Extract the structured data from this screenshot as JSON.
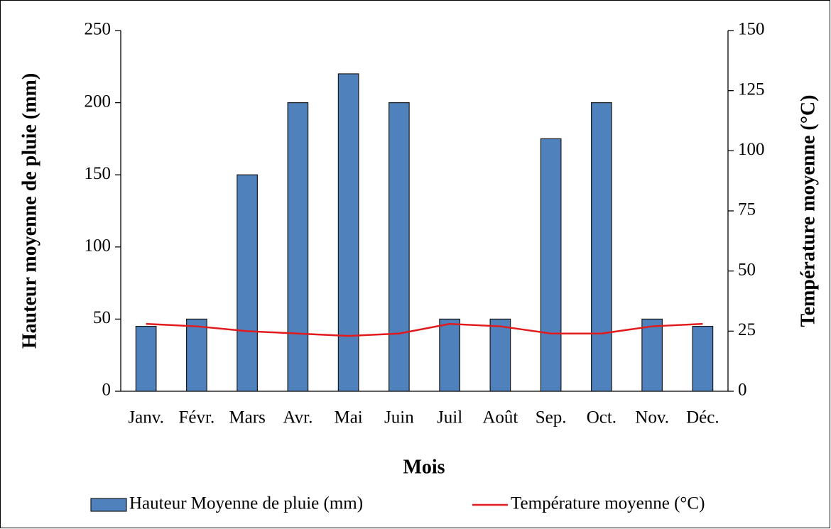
{
  "chart_data": {
    "type": "bar",
    "xlabel": "Mois",
    "ylabel": "Hauteur moyenne de pluie (mm)",
    "y2label": "Température moyenne (°C)",
    "categories": [
      "Janv.",
      "Févr.",
      "Mars",
      "Avr.",
      "Mai",
      "Juin",
      "Juil",
      "Août",
      "Sep.",
      "Oct.",
      "Nov.",
      "Déc."
    ],
    "series": [
      {
        "name": "Hauteur Moyenne de pluie (mm)",
        "type": "bar",
        "color": "#4f81bd",
        "values": [
          45,
          50,
          150,
          200,
          220,
          200,
          50,
          50,
          175,
          200,
          50,
          45
        ]
      },
      {
        "name": "Température moyenne (°C)",
        "type": "line",
        "axis": "y2",
        "color": "#e31a1c",
        "values": [
          28,
          27,
          25,
          24,
          23,
          24,
          28,
          27,
          24,
          24,
          27,
          28
        ]
      }
    ],
    "ylim": [
      0,
      250
    ],
    "yticks": [
      0,
      50,
      100,
      150,
      200,
      250
    ],
    "y2lim": [
      0,
      150
    ],
    "y2ticks": [
      0,
      25,
      50,
      75,
      100,
      125,
      150
    ],
    "legend": "bottom"
  }
}
